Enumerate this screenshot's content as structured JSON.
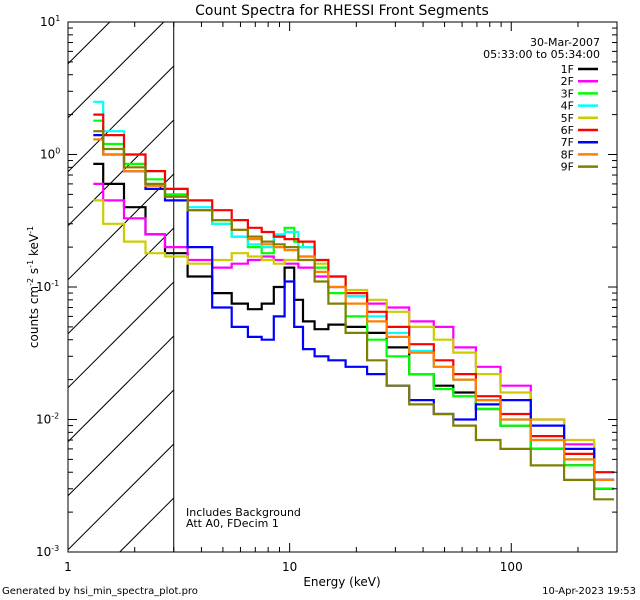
{
  "chart_data": {
    "type": "line",
    "title": "Count Spectra for RHESSI Front Segments",
    "xlabel": "Energy (keV)",
    "ylabel_base": "counts cm",
    "ylabel_sup1": "-2",
    "ylabel_mid": " s",
    "ylabel_sup2": "-1",
    "ylabel_end": " keV",
    "ylabel_sup3": "-1",
    "xscale": "log",
    "yscale": "log",
    "xlim": [
      1,
      300
    ],
    "ylim": [
      0.001,
      10
    ],
    "x_ticks": [
      {
        "value": 1,
        "label": "1"
      },
      {
        "value": 10,
        "label": "10"
      },
      {
        "value": 100,
        "label": "100"
      }
    ],
    "y_ticks": [
      {
        "value": 0.001,
        "base": "10",
        "exp": "-3"
      },
      {
        "value": 0.01,
        "base": "10",
        "exp": "-2"
      },
      {
        "value": 0.1,
        "base": "10",
        "exp": "-1"
      },
      {
        "value": 1,
        "base": "10",
        "exp": "0"
      },
      {
        "value": 10,
        "base": "10",
        "exp": "1"
      }
    ],
    "hatched_region_x": [
      1,
      3
    ],
    "annotations": {
      "date": "30-Mar-2007",
      "time_range": "05:33:00 to 05:34:00",
      "background_note": "Includes Background",
      "attenuator_note": "Att A0, FDecim 1"
    },
    "series": [
      {
        "name": "1F",
        "color": "#000000",
        "points": [
          [
            1.3,
            0.85
          ],
          [
            1.6,
            0.6
          ],
          [
            2.0,
            0.4
          ],
          [
            2.5,
            0.25
          ],
          [
            3.0,
            0.18
          ],
          [
            4.0,
            0.12
          ],
          [
            5.0,
            0.09
          ],
          [
            6.0,
            0.075
          ],
          [
            7.0,
            0.068
          ],
          [
            8.0,
            0.075
          ],
          [
            9.0,
            0.1
          ],
          [
            10.0,
            0.14
          ],
          [
            11.0,
            0.08
          ],
          [
            12.0,
            0.055
          ],
          [
            14.0,
            0.048
          ],
          [
            16.0,
            0.052
          ],
          [
            20.0,
            0.05
          ],
          [
            25.0,
            0.045
          ],
          [
            30.0,
            0.035
          ],
          [
            40.0,
            0.022
          ],
          [
            50.0,
            0.018
          ],
          [
            60.0,
            0.016
          ],
          [
            80.0,
            0.012
          ],
          [
            100.0,
            0.009
          ],
          [
            150.0,
            0.006
          ],
          [
            200.0,
            0.0045
          ],
          [
            280.0,
            0.003
          ]
        ]
      },
      {
        "name": "2F",
        "color": "#ff00ff",
        "points": [
          [
            1.3,
            0.6
          ],
          [
            1.6,
            0.45
          ],
          [
            2.0,
            0.33
          ],
          [
            2.5,
            0.25
          ],
          [
            3.0,
            0.2
          ],
          [
            4.0,
            0.16
          ],
          [
            5.0,
            0.14
          ],
          [
            6.0,
            0.15
          ],
          [
            7.0,
            0.16
          ],
          [
            8.0,
            0.17
          ],
          [
            9.0,
            0.16
          ],
          [
            10.0,
            0.15
          ],
          [
            12.0,
            0.14
          ],
          [
            14.0,
            0.12
          ],
          [
            16.0,
            0.1
          ],
          [
            20.0,
            0.085
          ],
          [
            25.0,
            0.075
          ],
          [
            30.0,
            0.07
          ],
          [
            40.0,
            0.055
          ],
          [
            50.0,
            0.05
          ],
          [
            60.0,
            0.035
          ],
          [
            80.0,
            0.025
          ],
          [
            100.0,
            0.018
          ],
          [
            150.0,
            0.01
          ],
          [
            200.0,
            0.0065
          ],
          [
            280.0,
            0.0035
          ]
        ]
      },
      {
        "name": "3F",
        "color": "#00ff00",
        "points": [
          [
            1.3,
            1.8
          ],
          [
            1.6,
            1.2
          ],
          [
            2.0,
            0.85
          ],
          [
            2.5,
            0.65
          ],
          [
            3.0,
            0.5
          ],
          [
            4.0,
            0.38
          ],
          [
            5.0,
            0.3
          ],
          [
            6.0,
            0.24
          ],
          [
            7.0,
            0.2
          ],
          [
            8.0,
            0.18
          ],
          [
            9.0,
            0.24
          ],
          [
            10.0,
            0.28
          ],
          [
            11.0,
            0.22
          ],
          [
            12.0,
            0.2
          ],
          [
            14.0,
            0.14
          ],
          [
            16.0,
            0.09
          ],
          [
            20.0,
            0.06
          ],
          [
            25.0,
            0.04
          ],
          [
            30.0,
            0.03
          ],
          [
            40.0,
            0.022
          ],
          [
            50.0,
            0.017
          ],
          [
            60.0,
            0.015
          ],
          [
            80.0,
            0.012
          ],
          [
            100.0,
            0.009
          ],
          [
            150.0,
            0.006
          ],
          [
            200.0,
            0.0045
          ],
          [
            280.0,
            0.003
          ]
        ]
      },
      {
        "name": "4F",
        "color": "#00ffff",
        "points": [
          [
            1.3,
            2.5
          ],
          [
            1.6,
            1.5
          ],
          [
            2.0,
            1.0
          ],
          [
            2.5,
            0.75
          ],
          [
            3.0,
            0.55
          ],
          [
            4.0,
            0.4
          ],
          [
            5.0,
            0.3
          ],
          [
            6.0,
            0.24
          ],
          [
            7.0,
            0.21
          ],
          [
            8.0,
            0.2
          ],
          [
            9.0,
            0.25
          ],
          [
            10.0,
            0.26
          ],
          [
            12.0,
            0.2
          ],
          [
            14.0,
            0.16
          ],
          [
            16.0,
            0.12
          ],
          [
            20.0,
            0.085
          ],
          [
            25.0,
            0.06
          ],
          [
            30.0,
            0.045
          ],
          [
            40.0,
            0.033
          ],
          [
            50.0,
            0.025
          ],
          [
            60.0,
            0.02
          ],
          [
            80.0,
            0.014
          ],
          [
            100.0,
            0.01
          ],
          [
            150.0,
            0.007
          ],
          [
            200.0,
            0.005
          ],
          [
            280.0,
            0.0035
          ]
        ]
      },
      {
        "name": "5F",
        "color": "#cccc00",
        "points": [
          [
            1.3,
            0.45
          ],
          [
            1.6,
            0.3
          ],
          [
            2.0,
            0.22
          ],
          [
            2.5,
            0.18
          ],
          [
            3.0,
            0.17
          ],
          [
            4.0,
            0.15
          ],
          [
            5.0,
            0.16
          ],
          [
            6.0,
            0.18
          ],
          [
            7.0,
            0.17
          ],
          [
            8.0,
            0.16
          ],
          [
            9.0,
            0.15
          ],
          [
            10.0,
            0.16
          ],
          [
            12.0,
            0.17
          ],
          [
            14.0,
            0.15
          ],
          [
            16.0,
            0.12
          ],
          [
            20.0,
            0.095
          ],
          [
            25.0,
            0.08
          ],
          [
            30.0,
            0.065
          ],
          [
            40.0,
            0.05
          ],
          [
            50.0,
            0.04
          ],
          [
            60.0,
            0.032
          ],
          [
            80.0,
            0.022
          ],
          [
            100.0,
            0.016
          ],
          [
            150.0,
            0.01
          ],
          [
            200.0,
            0.007
          ],
          [
            280.0,
            0.004
          ]
        ]
      },
      {
        "name": "6F",
        "color": "#ff0000",
        "points": [
          [
            1.3,
            2.0
          ],
          [
            1.6,
            1.4
          ],
          [
            2.0,
            1.0
          ],
          [
            2.5,
            0.75
          ],
          [
            3.0,
            0.55
          ],
          [
            4.0,
            0.45
          ],
          [
            5.0,
            0.38
          ],
          [
            6.0,
            0.32
          ],
          [
            7.0,
            0.28
          ],
          [
            8.0,
            0.26
          ],
          [
            9.0,
            0.24
          ],
          [
            10.0,
            0.23
          ],
          [
            12.0,
            0.22
          ],
          [
            14.0,
            0.16
          ],
          [
            16.0,
            0.12
          ],
          [
            20.0,
            0.09
          ],
          [
            25.0,
            0.065
          ],
          [
            30.0,
            0.05
          ],
          [
            40.0,
            0.037
          ],
          [
            50.0,
            0.028
          ],
          [
            60.0,
            0.022
          ],
          [
            80.0,
            0.015
          ],
          [
            100.0,
            0.011
          ],
          [
            150.0,
            0.0075
          ],
          [
            200.0,
            0.0055
          ],
          [
            280.0,
            0.004
          ]
        ]
      },
      {
        "name": "7F",
        "color": "#0000ff",
        "points": [
          [
            1.3,
            1.4
          ],
          [
            1.6,
            1.0
          ],
          [
            2.0,
            0.75
          ],
          [
            2.5,
            0.55
          ],
          [
            3.0,
            0.45
          ],
          [
            4.0,
            0.2
          ],
          [
            5.0,
            0.07
          ],
          [
            6.0,
            0.05
          ],
          [
            7.0,
            0.042
          ],
          [
            8.0,
            0.04
          ],
          [
            9.0,
            0.06
          ],
          [
            10.0,
            0.11
          ],
          [
            11.0,
            0.05
          ],
          [
            12.0,
            0.034
          ],
          [
            14.0,
            0.03
          ],
          [
            16.0,
            0.028
          ],
          [
            20.0,
            0.025
          ],
          [
            25.0,
            0.022
          ],
          [
            30.0,
            0.018
          ],
          [
            40.0,
            0.014
          ],
          [
            50.0,
            0.011
          ],
          [
            60.0,
            0.01
          ],
          [
            80.0,
            0.013
          ],
          [
            100.0,
            0.014
          ],
          [
            150.0,
            0.009
          ],
          [
            200.0,
            0.006
          ],
          [
            280.0,
            0.0035
          ]
        ]
      },
      {
        "name": "8F",
        "color": "#ff8000",
        "points": [
          [
            1.3,
            1.3
          ],
          [
            1.6,
            1.0
          ],
          [
            2.0,
            0.75
          ],
          [
            2.5,
            0.58
          ],
          [
            3.0,
            0.48
          ],
          [
            4.0,
            0.38
          ],
          [
            5.0,
            0.32
          ],
          [
            6.0,
            0.27
          ],
          [
            7.0,
            0.23
          ],
          [
            8.0,
            0.21
          ],
          [
            9.0,
            0.2
          ],
          [
            10.0,
            0.19
          ],
          [
            12.0,
            0.17
          ],
          [
            14.0,
            0.13
          ],
          [
            16.0,
            0.1
          ],
          [
            20.0,
            0.075
          ],
          [
            25.0,
            0.055
          ],
          [
            30.0,
            0.042
          ],
          [
            40.0,
            0.032
          ],
          [
            50.0,
            0.025
          ],
          [
            60.0,
            0.02
          ],
          [
            80.0,
            0.014
          ],
          [
            100.0,
            0.01
          ],
          [
            150.0,
            0.007
          ],
          [
            200.0,
            0.005
          ],
          [
            280.0,
            0.0035
          ]
        ]
      },
      {
        "name": "9F",
        "color": "#808000",
        "points": [
          [
            1.3,
            1.5
          ],
          [
            1.6,
            1.1
          ],
          [
            2.0,
            0.8
          ],
          [
            2.5,
            0.6
          ],
          [
            3.0,
            0.48
          ],
          [
            4.0,
            0.38
          ],
          [
            5.0,
            0.32
          ],
          [
            6.0,
            0.27
          ],
          [
            7.0,
            0.24
          ],
          [
            8.0,
            0.22
          ],
          [
            9.0,
            0.21
          ],
          [
            10.0,
            0.2
          ],
          [
            12.0,
            0.16
          ],
          [
            14.0,
            0.11
          ],
          [
            16.0,
            0.075
          ],
          [
            20.0,
            0.045
          ],
          [
            25.0,
            0.028
          ],
          [
            30.0,
            0.018
          ],
          [
            40.0,
            0.013
          ],
          [
            50.0,
            0.011
          ],
          [
            60.0,
            0.009
          ],
          [
            80.0,
            0.007
          ],
          [
            100.0,
            0.006
          ],
          [
            150.0,
            0.0045
          ],
          [
            200.0,
            0.0035
          ],
          [
            280.0,
            0.0025
          ]
        ]
      }
    ]
  },
  "footer": {
    "generated_by": "Generated by hsi_min_spectra_plot.pro",
    "timestamp": "10-Apr-2023 19:53"
  }
}
